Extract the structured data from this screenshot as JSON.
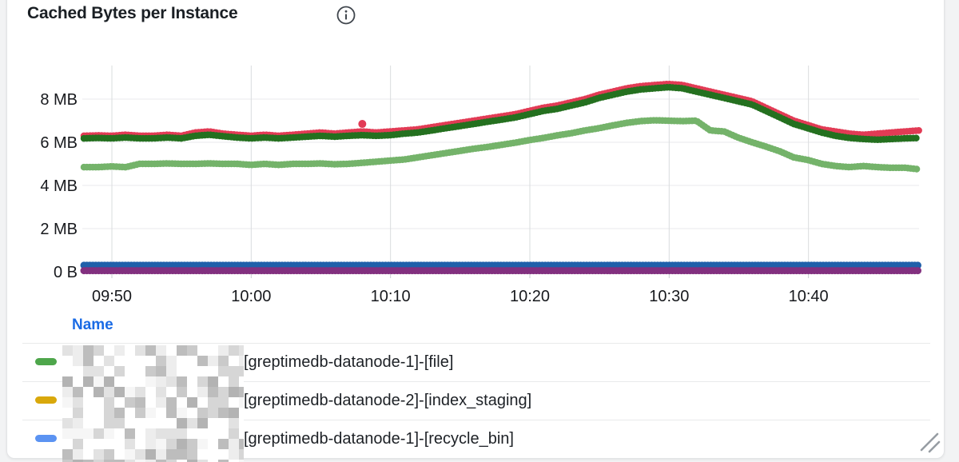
{
  "panel": {
    "title": "Cached Bytes per Instance",
    "info_icon": "info-icon"
  },
  "chart_data": {
    "type": "scatter",
    "title": "Cached Bytes per Instance",
    "xlabel": "",
    "ylabel": "",
    "grid": true,
    "legend_position": "bottom-table",
    "x_axis": {
      "start": "09:48",
      "end": "10:48",
      "ticks": [
        "09:50",
        "10:00",
        "10:10",
        "10:20",
        "10:30",
        "10:40"
      ]
    },
    "y_axis": {
      "ticks": [
        "0 B",
        "2 MB",
        "4 MB",
        "6 MB",
        "8 MB"
      ],
      "tick_values": [
        0,
        2,
        4,
        6,
        8
      ],
      "unit": "MB",
      "ylim": [
        0,
        9.5
      ]
    },
    "series": [
      {
        "name": "light-green",
        "color": "#74b36a",
        "unit": "MB",
        "values": [
          4.85,
          4.85,
          4.88,
          4.85,
          5.0,
          5.0,
          5.02,
          5.0,
          5.0,
          5.02,
          5.0,
          5.0,
          4.95,
          5.0,
          4.95,
          5.0,
          5.0,
          5.02,
          4.98,
          5.0,
          5.05,
          5.1,
          5.15,
          5.2,
          5.3,
          5.4,
          5.5,
          5.6,
          5.7,
          5.78,
          5.88,
          5.98,
          6.1,
          6.2,
          6.32,
          6.42,
          6.55,
          6.65,
          6.78,
          6.9,
          6.98,
          7.02,
          7.0,
          6.98,
          7.0,
          6.55,
          6.5,
          6.22,
          6.0,
          5.8,
          5.58,
          5.3,
          5.18,
          5.0,
          4.9,
          4.85,
          4.9,
          4.85,
          4.82,
          4.82,
          4.75
        ]
      },
      {
        "name": "red",
        "color": "#e23b55",
        "unit": "MB",
        "values": [
          6.3,
          6.32,
          6.3,
          6.35,
          6.3,
          6.3,
          6.35,
          6.3,
          6.45,
          6.5,
          6.4,
          6.35,
          6.3,
          6.35,
          6.3,
          6.35,
          6.4,
          6.45,
          6.4,
          6.45,
          6.5,
          6.45,
          6.5,
          6.55,
          6.6,
          6.7,
          6.8,
          6.9,
          7.0,
          7.1,
          7.2,
          7.3,
          7.45,
          7.6,
          7.7,
          7.85,
          8.0,
          8.2,
          8.35,
          8.5,
          8.6,
          8.65,
          8.7,
          8.65,
          8.5,
          8.35,
          8.2,
          8.05,
          7.9,
          7.6,
          7.3,
          7.0,
          6.8,
          6.6,
          6.5,
          6.4,
          6.35,
          6.4,
          6.45,
          6.5,
          6.55
        ]
      },
      {
        "name": "dark-green",
        "color": "#24701f",
        "unit": "MB",
        "values": [
          6.18,
          6.2,
          6.18,
          6.22,
          6.18,
          6.18,
          6.22,
          6.18,
          6.3,
          6.35,
          6.28,
          6.22,
          6.18,
          6.22,
          6.18,
          6.22,
          6.26,
          6.3,
          6.26,
          6.3,
          6.33,
          6.3,
          6.33,
          6.4,
          6.45,
          6.55,
          6.65,
          6.75,
          6.85,
          6.95,
          7.05,
          7.15,
          7.3,
          7.45,
          7.55,
          7.7,
          7.85,
          8.05,
          8.2,
          8.35,
          8.45,
          8.5,
          8.55,
          8.5,
          8.35,
          8.2,
          8.05,
          7.9,
          7.75,
          7.45,
          7.15,
          6.85,
          6.65,
          6.45,
          6.3,
          6.2,
          6.15,
          6.12,
          6.15,
          6.18,
          6.2
        ]
      },
      {
        "name": "blue",
        "color": "#1f60aa",
        "unit": "MB",
        "value": 0.3,
        "points": 61,
        "width": 9
      },
      {
        "name": "purple",
        "color": "#82307f",
        "unit": "MB",
        "value": 0.05,
        "points": 61,
        "width": 9
      }
    ],
    "outlier": {
      "series": "red",
      "t_min": 20,
      "value": 6.85,
      "color": "#e23b55"
    }
  },
  "legend": {
    "header": "Name",
    "rows": [
      {
        "color": "#4ea64b",
        "label": "[greptimedb-datanode-1]-[file]",
        "censored_prefix": true
      },
      {
        "color": "#d9a80b",
        "label": "[greptimedb-datanode-2]-[index_staging]",
        "censored_prefix": true
      },
      {
        "color": "#5b93f2",
        "label": "[greptimedb-datanode-1]-[recycle_bin]",
        "censored_prefix": true
      }
    ]
  },
  "censor": {
    "palette": [
      "#ffffff",
      "#f6f6f6",
      "#ededed",
      "#e2e2e2",
      "#d6d6d6",
      "#cacaca",
      "#bdbdbd",
      "#b3b3b3"
    ]
  },
  "colors": {
    "grid_h": "#e8eaec",
    "grid_v": "#dadcde",
    "axis_tick": "#c9cdd1",
    "axis_text": "#17191d",
    "legend_header": "#1a6be5",
    "card_border": "#e2e4e6",
    "resize_handle": "#979da3"
  }
}
